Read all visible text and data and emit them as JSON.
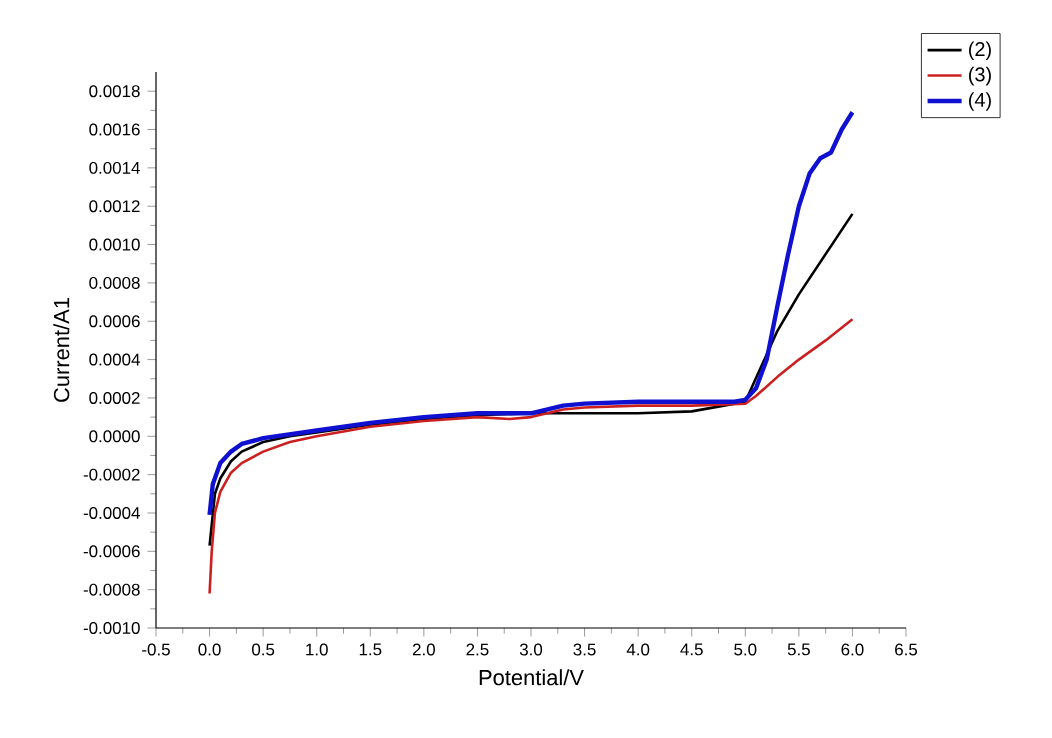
{
  "chart_data": {
    "type": "line",
    "xlabel": "Potential/V",
    "ylabel": "Current/A1",
    "xlim": [
      -0.5,
      6.5
    ],
    "ylim": [
      -0.001,
      0.0019
    ],
    "xticks": [
      {
        "value": -0.5,
        "label": "-0.5"
      },
      {
        "value": 0,
        "label": "0.0"
      },
      {
        "value": 0.5,
        "label": "0.5"
      },
      {
        "value": 1,
        "label": "1.0"
      },
      {
        "value": 1.5,
        "label": "1.5"
      },
      {
        "value": 2,
        "label": "2.0"
      },
      {
        "value": 2.5,
        "label": "2.5"
      },
      {
        "value": 3,
        "label": "3.0"
      },
      {
        "value": 3.5,
        "label": "3.5"
      },
      {
        "value": 4,
        "label": "4.0"
      },
      {
        "value": 4.5,
        "label": "4.5"
      },
      {
        "value": 5,
        "label": "5.0"
      },
      {
        "value": 5.5,
        "label": "5.5"
      },
      {
        "value": 6,
        "label": "6.0"
      },
      {
        "value": 6.5,
        "label": "6.5"
      }
    ],
    "yticks": [
      {
        "value": -0.001,
        "label": "-0.0010"
      },
      {
        "value": -0.0008,
        "label": "-0.0008"
      },
      {
        "value": -0.0006,
        "label": "-0.0006"
      },
      {
        "value": -0.0004,
        "label": "-0.0004"
      },
      {
        "value": -0.0002,
        "label": "-0.0002"
      },
      {
        "value": 0,
        "label": "0.0000"
      },
      {
        "value": 0.0002,
        "label": "0.0002"
      },
      {
        "value": 0.0004,
        "label": "0.0004"
      },
      {
        "value": 0.0006,
        "label": "0.0006"
      },
      {
        "value": 0.0008,
        "label": "0.0008"
      },
      {
        "value": 0.001,
        "label": "0.0010"
      },
      {
        "value": 0.0012,
        "label": "0.0012"
      },
      {
        "value": 0.0014,
        "label": "0.0014"
      },
      {
        "value": 0.0016,
        "label": "0.0016"
      },
      {
        "value": 0.0018,
        "label": "0.0018"
      }
    ],
    "legend": "top right",
    "grid": false,
    "marker": "none",
    "line_style": "solid",
    "series": [
      {
        "name": "(2)",
        "color": "#000000",
        "x": [
          0,
          0.05,
          0.1,
          0.2,
          0.3,
          0.5,
          0.75,
          1.0,
          1.5,
          2.0,
          2.5,
          3.0,
          3.5,
          4.0,
          4.5,
          4.8,
          5.0,
          5.3,
          5.5,
          5.75,
          6.0
        ],
        "values": [
          -0.00057,
          -0.0003,
          -0.00022,
          -0.00013,
          -8e-05,
          -3e-05,
          0.0,
          2e-05,
          6e-05,
          9e-05,
          0.00011,
          0.00012,
          0.00012,
          0.00012,
          0.00013,
          0.00016,
          0.00018,
          0.00055,
          0.00074,
          0.00095,
          0.00116
        ]
      },
      {
        "name": "(3)",
        "color": "#cc2020",
        "x": [
          0,
          0.02,
          0.05,
          0.1,
          0.2,
          0.3,
          0.5,
          0.75,
          1.0,
          1.5,
          2.0,
          2.5,
          2.8,
          3.0,
          3.3,
          3.5,
          4.0,
          4.5,
          5.0,
          5.1,
          5.3,
          5.5,
          5.75,
          6.0
        ],
        "values": [
          -0.00082,
          -0.0006,
          -0.0004,
          -0.00029,
          -0.00019,
          -0.00014,
          -8e-05,
          -3e-05,
          0.0,
          5e-05,
          8e-05,
          0.0001,
          9e-05,
          0.0001,
          0.00014,
          0.00015,
          0.00016,
          0.00016,
          0.00017,
          0.00021,
          0.00031,
          0.0004,
          0.0005,
          0.00061
        ]
      },
      {
        "name": "(4)",
        "color": "#1010d0",
        "x": [
          0,
          0.03,
          0.1,
          0.2,
          0.3,
          0.5,
          1.0,
          1.5,
          2.0,
          2.5,
          3.0,
          3.3,
          3.5,
          4.0,
          4.5,
          4.9,
          5.0,
          5.1,
          5.2,
          5.3,
          5.4,
          5.5,
          5.6,
          5.7,
          5.8,
          5.9,
          6.0
        ],
        "values": [
          -0.00041,
          -0.00025,
          -0.00014,
          -8e-05,
          -4e-05,
          -1e-05,
          3e-05,
          7e-05,
          0.0001,
          0.00012,
          0.00012,
          0.00016,
          0.00017,
          0.00018,
          0.00018,
          0.00018,
          0.00019,
          0.00025,
          0.0004,
          0.00068,
          0.00095,
          0.0012,
          0.00137,
          0.00145,
          0.00148,
          0.0016,
          0.00169
        ]
      }
    ]
  }
}
